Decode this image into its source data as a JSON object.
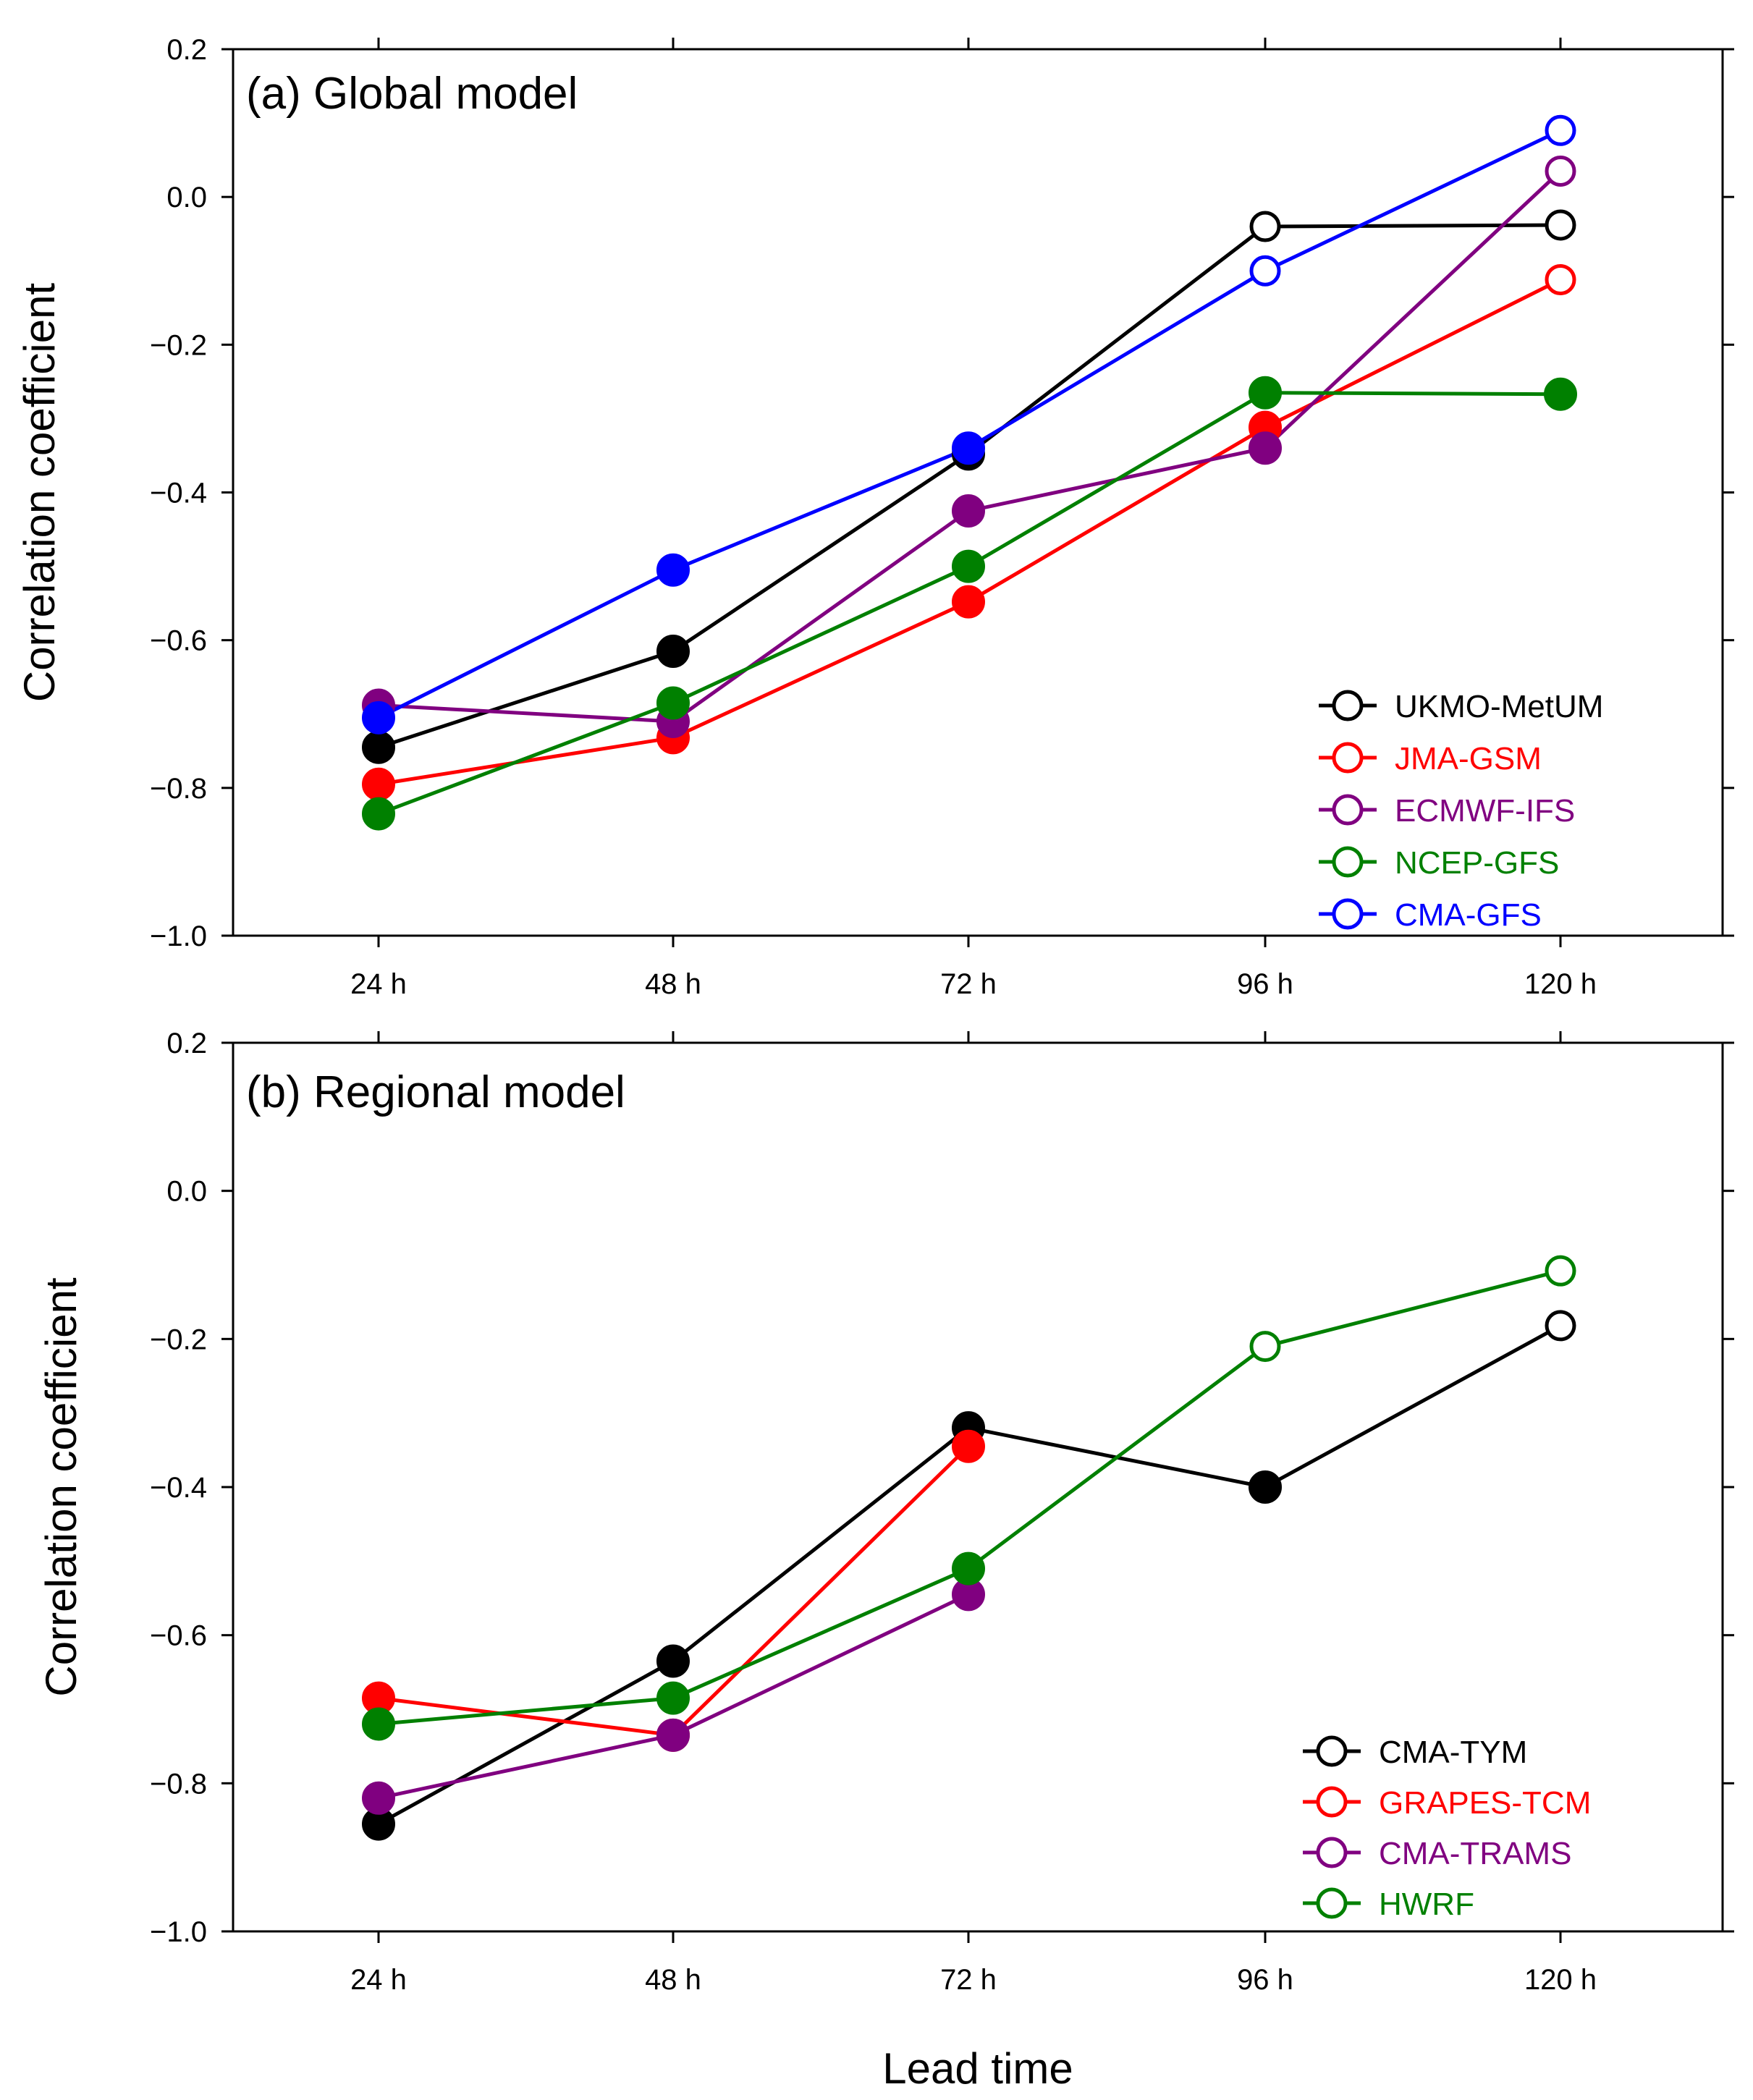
{
  "chart_data": [
    {
      "type": "line",
      "title": "(a) Global model",
      "xlabel": "",
      "ylabel": "Correlation coefficient",
      "categories": [
        "24 h",
        "48 h",
        "72 h",
        "96 h",
        "120 h"
      ],
      "ylim": [
        -1.0,
        0.2
      ],
      "yticks": [
        -1.0,
        -0.8,
        -0.6,
        -0.4,
        -0.2,
        0.0,
        0.2
      ],
      "ytick_labels": [
        "−1.0",
        "−0.8",
        "−0.6",
        "−0.4",
        "−0.2",
        "0.0",
        "0.2"
      ],
      "legend_position": "lower-right",
      "series": [
        {
          "name": "UKMO-MetUM",
          "color": "#000000",
          "values": [
            -0.745,
            -0.615,
            -0.348,
            -0.04,
            -0.038
          ],
          "filled": [
            true,
            true,
            true,
            false,
            false
          ]
        },
        {
          "name": "JMA-GSM",
          "color": "#ff0000",
          "values": [
            -0.795,
            -0.732,
            -0.548,
            -0.312,
            -0.112
          ],
          "filled": [
            true,
            true,
            true,
            true,
            false
          ]
        },
        {
          "name": "ECMWF-IFS",
          "color": "#800080",
          "values": [
            -0.688,
            -0.71,
            -0.425,
            -0.34,
            0.035
          ],
          "filled": [
            true,
            true,
            true,
            true,
            false
          ]
        },
        {
          "name": "NCEP-GFS",
          "color": "#008000",
          "values": [
            -0.835,
            -0.685,
            -0.5,
            -0.265,
            -0.267
          ],
          "filled": [
            true,
            true,
            true,
            true,
            true
          ]
        },
        {
          "name": "CMA-GFS",
          "color": "#0000ff",
          "values": [
            -0.705,
            -0.505,
            -0.34,
            -0.1,
            0.09
          ],
          "filled": [
            true,
            true,
            true,
            false,
            false
          ]
        }
      ]
    },
    {
      "type": "line",
      "title": "(b) Regional model",
      "xlabel": "Lead time",
      "ylabel": "Correlation coefficient",
      "categories": [
        "24 h",
        "48 h",
        "72 h",
        "96 h",
        "120 h"
      ],
      "ylim": [
        -1.0,
        0.2
      ],
      "yticks": [
        -1.0,
        -0.8,
        -0.6,
        -0.4,
        -0.2,
        0.0,
        0.2
      ],
      "ytick_labels": [
        "−1.0",
        "−0.8",
        "−0.6",
        "−0.4",
        "−0.2",
        "0.0",
        "0.2"
      ],
      "legend_position": "lower-right",
      "series": [
        {
          "name": "CMA-TYM",
          "color": "#000000",
          "values": [
            -0.855,
            -0.635,
            -0.32,
            -0.4,
            -0.182
          ],
          "filled": [
            true,
            true,
            true,
            true,
            false
          ]
        },
        {
          "name": "GRAPES-TCM",
          "color": "#ff0000",
          "values": [
            -0.685,
            -0.735,
            -0.345,
            null,
            null
          ],
          "filled": [
            true,
            true,
            true,
            null,
            null
          ]
        },
        {
          "name": "CMA-TRAMS",
          "color": "#800080",
          "values": [
            -0.82,
            -0.735,
            -0.545,
            null,
            null
          ],
          "filled": [
            true,
            true,
            true,
            null,
            null
          ]
        },
        {
          "name": "HWRF",
          "color": "#008000",
          "values": [
            -0.72,
            -0.685,
            -0.51,
            -0.21,
            -0.108
          ],
          "filled": [
            true,
            true,
            true,
            false,
            false
          ]
        }
      ]
    }
  ]
}
